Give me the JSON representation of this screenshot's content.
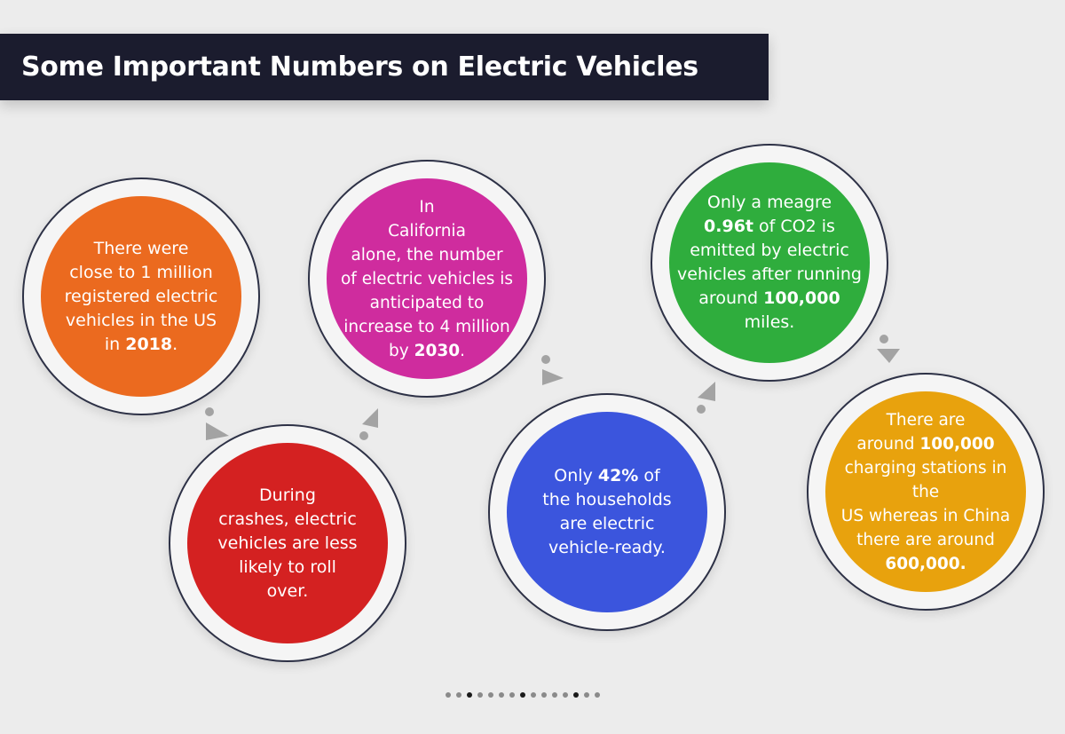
{
  "title": "Some Important Numbers on Electric Vehicles",
  "colors": {
    "orange": "#eb6a1f",
    "red": "#d42121",
    "magenta": "#cf2c9e",
    "blue": "#3b55dd",
    "green": "#2fad3d",
    "gold": "#e8a20d",
    "title_bg": "#1b1c2e"
  },
  "facts": [
    {
      "id": "registered-us",
      "color": "orange",
      "lines": [
        [
          {
            "t": "There were"
          }
        ],
        [
          {
            "t": "close to 1 million"
          }
        ],
        [
          {
            "t": "registered electric"
          }
        ],
        [
          {
            "t": "vehicles in the US"
          }
        ],
        [
          {
            "t": "in "
          },
          {
            "t": "2018",
            "b": true
          },
          {
            "t": "."
          }
        ]
      ]
    },
    {
      "id": "rollover",
      "color": "red",
      "lines": [
        [
          {
            "t": "During"
          }
        ],
        [
          {
            "t": "crashes, electric"
          }
        ],
        [
          {
            "t": "vehicles are less"
          }
        ],
        [
          {
            "t": "likely to roll"
          }
        ],
        [
          {
            "t": "over."
          }
        ]
      ]
    },
    {
      "id": "california",
      "color": "magenta",
      "lines": [
        [
          {
            "t": "In"
          }
        ],
        [
          {
            "t": "California"
          }
        ],
        [
          {
            "t": "alone, the number"
          }
        ],
        [
          {
            "t": "of electric vehicles is"
          }
        ],
        [
          {
            "t": "anticipated to"
          }
        ],
        [
          {
            "t": "increase to 4 million"
          }
        ],
        [
          {
            "t": "by "
          },
          {
            "t": "2030",
            "b": true
          },
          {
            "t": "."
          }
        ]
      ]
    },
    {
      "id": "households",
      "color": "blue",
      "lines": [
        [
          {
            "t": "Only "
          },
          {
            "t": "42%",
            "b": true
          },
          {
            "t": " of"
          }
        ],
        [
          {
            "t": "the households"
          }
        ],
        [
          {
            "t": "are electric"
          }
        ],
        [
          {
            "t": "vehicle-ready."
          }
        ]
      ]
    },
    {
      "id": "co2",
      "color": "green",
      "lines": [
        [
          {
            "t": "Only a meagre"
          }
        ],
        [
          {
            "t": "0.96t",
            "b": true
          },
          {
            "t": " of CO2 is"
          }
        ],
        [
          {
            "t": "emitted by electric"
          }
        ],
        [
          {
            "t": "vehicles after running"
          }
        ],
        [
          {
            "t": "around "
          },
          {
            "t": "100,000",
            "b": true
          }
        ],
        [
          {
            "t": "miles."
          }
        ]
      ]
    },
    {
      "id": "charging",
      "color": "gold",
      "lines": [
        [
          {
            "t": "There are"
          }
        ],
        [
          {
            "t": "around "
          },
          {
            "t": "100,000",
            "b": true
          }
        ],
        [
          {
            "t": "charging stations in the"
          }
        ],
        [
          {
            "t": "US whereas in China"
          }
        ],
        [
          {
            "t": "there are around"
          }
        ],
        [
          {
            "t": "600,000.",
            "b": true
          }
        ]
      ]
    }
  ],
  "pagination": {
    "count": 15,
    "active": [
      2,
      7,
      12
    ]
  }
}
